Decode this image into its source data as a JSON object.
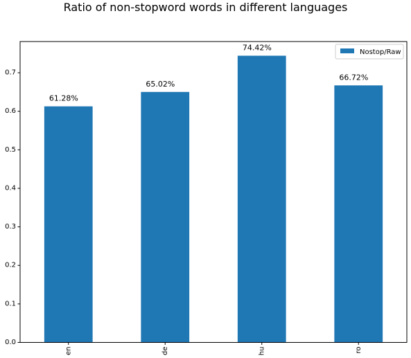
{
  "chart_data": {
    "type": "bar",
    "title": "Ratio of non-stopword words in different languages",
    "xlabel": "",
    "ylabel": "",
    "categories": [
      "en",
      "de",
      "hu",
      "ro"
    ],
    "series": [
      {
        "name": "Nostop/Raw",
        "color": "#1f77b4",
        "values": [
          0.6128,
          0.6502,
          0.7442,
          0.6672
        ],
        "data_labels": [
          "61.28%",
          "65.02%",
          "74.42%",
          "66.72%"
        ]
      }
    ],
    "ylim": [
      0,
      0.781
    ],
    "yticks": [
      0.0,
      0.1,
      0.2,
      0.3,
      0.4,
      0.5,
      0.6,
      0.7
    ],
    "ytick_labels": [
      "0.0",
      "0.1",
      "0.2",
      "0.3",
      "0.4",
      "0.5",
      "0.6",
      "0.7"
    ],
    "grid": false,
    "legend_position": "top-right"
  }
}
